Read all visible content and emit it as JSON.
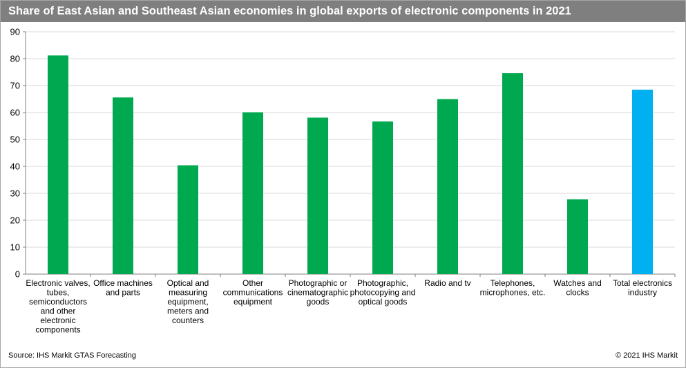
{
  "title": "Share of East Asian and Southeast Asian economies in global exports of electronic components in 2021",
  "source": "Source: IHS Markit GTAS Forecasting",
  "copyright": "© 2021 IHS Markit",
  "colors": {
    "title_background": "#7f7f7f",
    "bar_default": "#00a84f",
    "bar_highlight": "#00b0f0",
    "gridline": "#d9d9d9"
  },
  "chart_data": {
    "type": "bar",
    "categories": [
      [
        "Electronic valves,",
        "tubes,",
        "semiconductors",
        "and other",
        "electronic",
        "components"
      ],
      [
        "Office machines",
        "and parts"
      ],
      [
        "Optical and",
        "measuring",
        "equipment,",
        "meters and",
        "counters"
      ],
      [
        "Other",
        "communications",
        "equipment"
      ],
      [
        "Photographic or",
        "cinematographic",
        "goods"
      ],
      [
        "Photographic,",
        "photocopying and",
        "optical goods"
      ],
      [
        "Radio and tv"
      ],
      [
        "Telephones,",
        "microphones, etc."
      ],
      [
        "Watches and",
        "clocks"
      ],
      [
        "Total electronics",
        "industry"
      ]
    ],
    "values": [
      81.2,
      65.6,
      40.4,
      60.1,
      58.1,
      56.7,
      65.0,
      74.6,
      27.8,
      68.5
    ],
    "highlight_index": 9,
    "ylim": [
      0,
      90
    ],
    "yticks": [
      0,
      10,
      20,
      30,
      40,
      50,
      60,
      70,
      80,
      90
    ],
    "grid": true,
    "xlabel": "",
    "ylabel": ""
  }
}
